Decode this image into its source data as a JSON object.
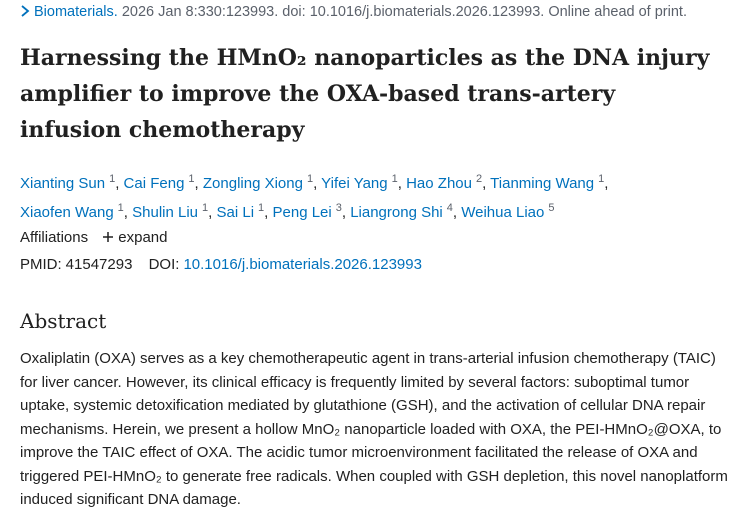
{
  "citation": {
    "journal": "Biomaterials.",
    "details": "2026 Jan 8:330:123993. doi: 10.1016/j.biomaterials.2026.123993. Online ahead of print."
  },
  "title": "Harnessing the HMnO₂ nanoparticles as the DNA injury amplifier to improve the OXA-based trans-artery infusion chemotherapy",
  "authors": [
    {
      "name": "Xianting Sun",
      "aff": "1"
    },
    {
      "name": "Cai Feng",
      "aff": "1"
    },
    {
      "name": "Zongling Xiong",
      "aff": "1"
    },
    {
      "name": "Yifei Yang",
      "aff": "1"
    },
    {
      "name": "Hao Zhou",
      "aff": "2"
    },
    {
      "name": "Tianming Wang",
      "aff": "1"
    },
    {
      "name": "Xiaofen Wang",
      "aff": "1"
    },
    {
      "name": "Shulin Liu",
      "aff": "1"
    },
    {
      "name": "Sai Li",
      "aff": "1"
    },
    {
      "name": "Peng Lei",
      "aff": "3"
    },
    {
      "name": "Liangrong Shi",
      "aff": "4"
    },
    {
      "name": "Weihua Liao",
      "aff": "5"
    }
  ],
  "affiliations": {
    "label": "Affiliations",
    "toggle": "expand"
  },
  "ids": {
    "pmid_label": "PMID:",
    "pmid": "41547293",
    "doi_label": "DOI:",
    "doi": "10.1016/j.biomaterials.2026.123993"
  },
  "abstract": {
    "heading": "Abstract",
    "text": "Oxaliplatin (OXA) serves as a key chemotherapeutic agent in trans-arterial infusion chemotherapy (TAIC) for liver cancer. However, its clinical efficacy is frequently limited by several factors: suboptimal tumor uptake, systemic detoxification mediated by glutathione (GSH), and the activation of cellular DNA repair mechanisms. Herein, we present a hollow MnO₂ nanoparticle loaded with OXA, the PEI-HMnO₂@OXA, to improve the TAIC effect of OXA. The acidic tumor microenvironment facilitated the release of OXA and triggered PEI-HMnO₂ to generate free radicals. When coupled with GSH depletion, this novel nanoplatform induced significant DNA damage."
  }
}
